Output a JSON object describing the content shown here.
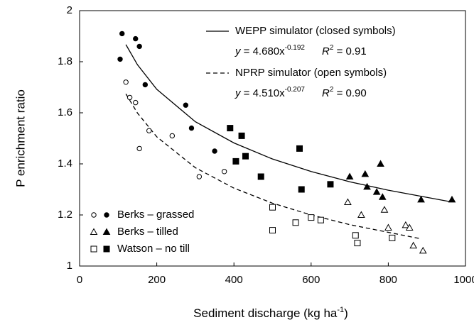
{
  "chart_data": {
    "type": "scatter",
    "xlabel": {
      "text": "Sediment discharge (kg ha",
      "sup": "-1",
      "close": ")"
    },
    "ylabel": "P enrichment ratio",
    "xlim": [
      0,
      1000
    ],
    "xticks": [
      0,
      200,
      400,
      600,
      800,
      1000
    ],
    "ylim": [
      1,
      2
    ],
    "yticks": [
      1,
      1.2,
      1.4,
      1.6,
      1.8,
      2
    ],
    "series": [
      {
        "name": "Berks – grassed",
        "marker": "circle",
        "closed_x": [
          105,
          110,
          145,
          155,
          170,
          275,
          290,
          350
        ],
        "closed_values": [
          1.81,
          1.91,
          1.89,
          1.86,
          1.71,
          1.63,
          1.54,
          1.45
        ],
        "open_x": [
          120,
          130,
          145,
          155,
          180,
          240,
          310,
          375
        ],
        "open_values": [
          1.72,
          1.66,
          1.64,
          1.46,
          1.53,
          1.51,
          1.35,
          1.37
        ]
      },
      {
        "name": "Berks – tilled",
        "marker": "triangle",
        "closed_x": [
          700,
          740,
          745,
          770,
          780,
          785,
          885,
          965
        ],
        "closed_values": [
          1.35,
          1.36,
          1.31,
          1.29,
          1.4,
          1.27,
          1.26,
          1.26
        ],
        "open_x": [
          695,
          730,
          790,
          800,
          845,
          855,
          865,
          890
        ],
        "open_values": [
          1.25,
          1.2,
          1.22,
          1.15,
          1.16,
          1.15,
          1.08,
          1.06
        ]
      },
      {
        "name": "Watson – no till",
        "marker": "square",
        "closed_x": [
          390,
          420,
          405,
          430,
          470,
          570,
          575,
          650
        ],
        "closed_values": [
          1.54,
          1.51,
          1.41,
          1.43,
          1.35,
          1.46,
          1.3,
          1.32
        ],
        "open_x": [
          500,
          500,
          560,
          600,
          625,
          715,
          720,
          810
        ],
        "open_values": [
          1.23,
          1.14,
          1.17,
          1.19,
          1.18,
          1.12,
          1.09,
          1.11
        ]
      }
    ],
    "fits": [
      {
        "name": "WEPP simulator (closed symbols)",
        "dashed": false,
        "x": [
          120,
          150,
          200,
          300,
          400,
          500,
          600,
          700,
          800,
          960
        ],
        "values": [
          1.867,
          1.788,
          1.692,
          1.565,
          1.482,
          1.419,
          1.37,
          1.33,
          1.297,
          1.252
        ],
        "equation": {
          "lhs": "y",
          "rhs": " = 4.680x",
          "exp": "-0.192",
          "r": "R",
          "rexp": "2",
          "rval": " = 0.91"
        }
      },
      {
        "name": "NPRP simulator (open symbols)",
        "dashed": true,
        "x": [
          120,
          150,
          200,
          300,
          400,
          500,
          600,
          700,
          880
        ],
        "values": [
          1.674,
          1.599,
          1.506,
          1.385,
          1.305,
          1.246,
          1.2,
          1.162,
          1.108
        ],
        "equation": {
          "lhs": "y",
          "rhs": " = 4.510x",
          "exp": "-0.207",
          "r": "R",
          "rexp": "2",
          "rval": " = 0.90"
        }
      }
    ]
  }
}
